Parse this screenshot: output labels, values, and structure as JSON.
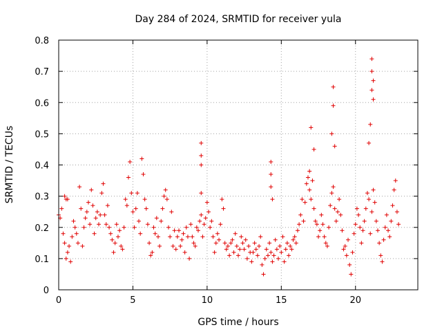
{
  "chart_data": {
    "type": "scatter",
    "title": "Day 284 of 2024, SRMTID for receiver yula",
    "xlabel": "GPS time / hours",
    "ylabel": "SRMTID / TECUs",
    "xlim": [
      0,
      24.2
    ],
    "ylim": [
      0,
      0.8
    ],
    "x_ticks": [
      0,
      5,
      10,
      15,
      20
    ],
    "y_ticks": [
      0,
      0.1,
      0.2,
      0.3,
      0.4,
      0.5,
      0.6,
      0.7,
      0.8
    ],
    "grid": true,
    "marker": "+",
    "color": "#e00000",
    "series": [
      {
        "name": "SRMTID",
        "x": [
          0.0,
          0.1,
          0.2,
          0.3,
          0.4,
          0.5,
          0.6,
          0.7,
          0.8,
          0.9,
          1.0,
          1.1,
          1.2,
          1.3,
          1.4,
          1.5,
          1.6,
          1.7,
          1.8,
          1.9,
          2.0,
          2.1,
          2.2,
          2.3,
          2.4,
          2.5,
          2.6,
          2.7,
          2.8,
          2.9,
          3.0,
          3.1,
          3.2,
          3.3,
          3.4,
          3.5,
          3.6,
          3.7,
          3.8,
          3.9,
          4.0,
          4.1,
          4.2,
          4.3,
          4.4,
          4.5,
          4.6,
          4.7,
          4.8,
          4.9,
          5.0,
          5.1,
          5.2,
          5.3,
          5.4,
          5.5,
          5.6,
          5.7,
          5.8,
          5.9,
          6.0,
          6.1,
          6.2,
          6.3,
          6.4,
          6.5,
          6.6,
          6.7,
          6.8,
          6.9,
          7.0,
          7.1,
          7.2,
          7.3,
          7.4,
          7.5,
          7.6,
          7.7,
          7.8,
          7.9,
          8.0,
          8.1,
          8.2,
          8.3,
          8.4,
          8.5,
          8.6,
          8.7,
          8.8,
          8.9,
          9.0,
          9.1,
          9.2,
          9.3,
          9.4,
          9.5,
          9.6,
          9.7,
          9.8,
          9.9,
          10.0,
          10.1,
          10.2,
          10.3,
          10.4,
          10.5,
          10.6,
          10.7,
          10.8,
          10.9,
          11.0,
          11.1,
          11.2,
          11.3,
          11.4,
          11.5,
          11.6,
          11.7,
          11.8,
          11.9,
          12.0,
          12.1,
          12.2,
          12.3,
          12.4,
          12.5,
          12.6,
          12.7,
          12.8,
          12.9,
          13.0,
          13.1,
          13.2,
          13.3,
          13.4,
          13.5,
          13.6,
          13.7,
          13.8,
          13.9,
          14.0,
          14.1,
          14.2,
          14.3,
          14.4,
          14.5,
          14.6,
          14.7,
          14.8,
          14.9,
          15.0,
          15.1,
          15.2,
          15.3,
          15.4,
          15.5,
          15.6,
          15.7,
          15.8,
          15.9,
          16.0,
          16.1,
          16.2,
          16.3,
          16.4,
          16.5,
          16.6,
          16.7,
          16.8,
          16.9,
          17.0,
          17.1,
          17.2,
          17.3,
          17.4,
          17.5,
          17.6,
          17.7,
          17.8,
          17.9,
          18.0,
          18.1,
          18.2,
          18.3,
          18.4,
          18.5,
          18.6,
          18.7,
          18.8,
          18.9,
          19.0,
          19.1,
          19.2,
          19.3,
          19.4,
          19.5,
          19.6,
          19.7,
          19.8,
          19.9,
          20.0,
          20.1,
          20.2,
          20.3,
          20.4,
          20.5,
          20.6,
          20.7,
          20.8,
          20.9,
          21.0,
          21.1,
          21.2,
          21.3,
          21.4,
          21.5,
          21.6,
          21.7,
          21.8,
          21.9,
          22.0,
          22.1,
          22.2,
          22.3,
          22.4,
          22.5,
          22.6,
          22.7,
          22.8,
          22.9,
          9.6,
          9.6,
          9.6,
          9.6,
          14.3,
          14.3,
          14.3,
          14.4,
          18.5,
          18.5,
          18.4,
          18.6,
          21.0,
          21.1,
          21.1,
          21.2,
          21.1,
          21.2,
          20.9,
          17.2,
          17.0,
          16.9,
          0.4,
          0.5,
          0.6
        ],
        "y": [
          0.24,
          0.23,
          0.26,
          0.18,
          0.15,
          0.1,
          0.12,
          0.14,
          0.09,
          0.17,
          0.22,
          0.2,
          0.18,
          0.15,
          0.33,
          0.26,
          0.14,
          0.2,
          0.23,
          0.25,
          0.28,
          0.21,
          0.32,
          0.27,
          0.18,
          0.23,
          0.25,
          0.21,
          0.24,
          0.31,
          0.34,
          0.24,
          0.21,
          0.27,
          0.2,
          0.18,
          0.16,
          0.12,
          0.15,
          0.21,
          0.17,
          0.19,
          0.14,
          0.13,
          0.2,
          0.29,
          0.27,
          0.36,
          0.41,
          0.31,
          0.25,
          0.2,
          0.26,
          0.31,
          0.22,
          0.18,
          0.42,
          0.37,
          0.29,
          0.26,
          0.21,
          0.15,
          0.11,
          0.12,
          0.2,
          0.18,
          0.23,
          0.17,
          0.14,
          0.22,
          0.26,
          0.3,
          0.32,
          0.29,
          0.2,
          0.17,
          0.25,
          0.14,
          0.19,
          0.13,
          0.17,
          0.19,
          0.14,
          0.16,
          0.18,
          0.12,
          0.2,
          0.17,
          0.1,
          0.21,
          0.17,
          0.15,
          0.14,
          0.2,
          0.19,
          0.22,
          0.24,
          0.17,
          0.21,
          0.23,
          0.28,
          0.25,
          0.2,
          0.22,
          0.17,
          0.12,
          0.15,
          0.18,
          0.16,
          0.21,
          0.29,
          0.26,
          0.15,
          0.13,
          0.14,
          0.11,
          0.15,
          0.16,
          0.12,
          0.18,
          0.14,
          0.11,
          0.13,
          0.17,
          0.15,
          0.13,
          0.16,
          0.1,
          0.14,
          0.12,
          0.09,
          0.12,
          0.15,
          0.13,
          0.11,
          0.14,
          0.17,
          0.08,
          0.05,
          0.1,
          0.13,
          0.11,
          0.15,
          0.12,
          0.09,
          0.11,
          0.16,
          0.13,
          0.1,
          0.14,
          0.12,
          0.17,
          0.09,
          0.13,
          0.15,
          0.11,
          0.14,
          0.13,
          0.16,
          0.17,
          0.15,
          0.19,
          0.21,
          0.24,
          0.29,
          0.22,
          0.28,
          0.34,
          0.36,
          0.32,
          0.29,
          0.35,
          0.26,
          0.22,
          0.21,
          0.17,
          0.19,
          0.24,
          0.21,
          0.17,
          0.15,
          0.14,
          0.2,
          0.27,
          0.31,
          0.33,
          0.26,
          0.22,
          0.25,
          0.29,
          0.24,
          0.19,
          0.13,
          0.14,
          0.11,
          0.16,
          0.08,
          0.05,
          0.12,
          0.18,
          0.21,
          0.26,
          0.24,
          0.2,
          0.15,
          0.19,
          0.22,
          0.26,
          0.31,
          0.29,
          0.18,
          0.25,
          0.32,
          0.28,
          0.22,
          0.19,
          0.15,
          0.11,
          0.09,
          0.16,
          0.2,
          0.24,
          0.19,
          0.17,
          0.22,
          0.27,
          0.32,
          0.35,
          0.25,
          0.21,
          0.47,
          0.43,
          0.4,
          0.31,
          0.41,
          0.37,
          0.33,
          0.29,
          0.65,
          0.59,
          0.5,
          0.46,
          0.53,
          0.74,
          0.7,
          0.67,
          0.64,
          0.61,
          0.47,
          0.45,
          0.52,
          0.38,
          0.3,
          0.29,
          0.29
        ]
      }
    ]
  }
}
